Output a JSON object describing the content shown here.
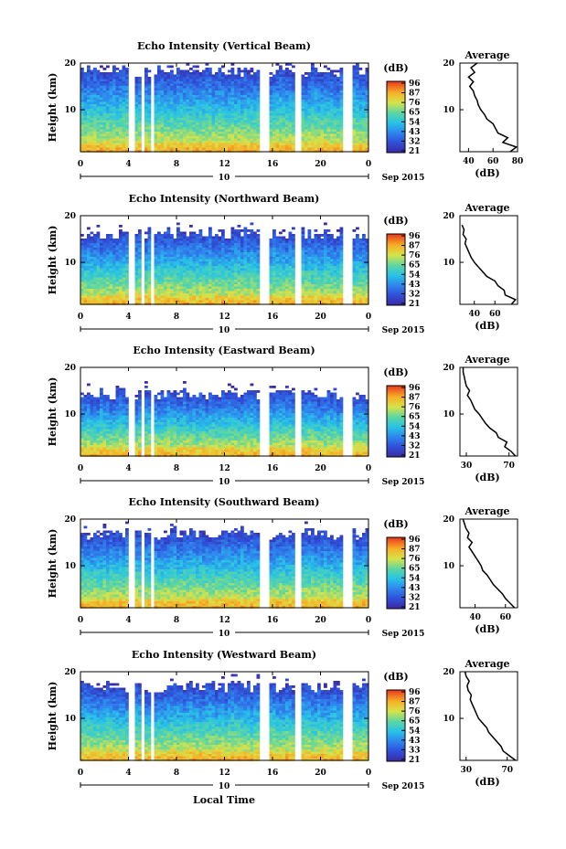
{
  "figure": {
    "xlabel": "Local Time",
    "date_label": "Sep 2015",
    "day_label": "10",
    "avg_title": "Average",
    "avg_xlabel": "(dB)",
    "cb_label": "(dB)",
    "ylabel": "Height (km)"
  },
  "chart_data": [
    {
      "type": "heatmap",
      "title": "Echo Intensity (Vertical Beam)",
      "ylabel": "Height (km)",
      "x_ticks": [
        "0",
        "4",
        "8",
        "12",
        "16",
        "20",
        "0"
      ],
      "y_ticks": [
        "10",
        "20"
      ],
      "xlim": [
        0,
        24
      ],
      "ylim": [
        1,
        20
      ],
      "colorbar_ticks": [
        "96",
        "87",
        "76",
        "65",
        "54",
        "43",
        "32",
        "21"
      ],
      "colorbar_range": [
        21,
        96
      ],
      "gaps": [
        [
          4.0,
          4.5
        ],
        [
          5.0,
          5.3
        ],
        [
          5.7,
          6.0
        ],
        [
          14.8,
          15.5
        ],
        [
          17.7,
          18.2
        ],
        [
          21.8,
          22.4
        ]
      ],
      "echo_top_km": 18.5,
      "average_profile": {
        "title": "Average",
        "xlabel": "(dB)",
        "x_ticks": [
          "40",
          "60",
          "80"
        ],
        "xlim": [
          33,
          80
        ],
        "y_ticks": [
          "10",
          "20"
        ],
        "ylim": [
          1,
          20
        ],
        "height_km": [
          1,
          2,
          3,
          4,
          5,
          6,
          7,
          8,
          9,
          10,
          11,
          12,
          13,
          14,
          15,
          16,
          17,
          18,
          19,
          20
        ],
        "values_db": [
          74,
          79,
          68,
          72,
          64,
          62,
          60,
          55,
          53,
          50,
          48,
          47,
          45,
          44,
          41,
          44,
          40,
          45,
          42,
          47
        ]
      }
    },
    {
      "type": "heatmap",
      "title": "Echo Intensity (Northward Beam)",
      "ylabel": "Height (km)",
      "x_ticks": [
        "0",
        "4",
        "8",
        "12",
        "16",
        "20",
        "0"
      ],
      "y_ticks": [
        "10",
        "20"
      ],
      "xlim": [
        0,
        24
      ],
      "ylim": [
        1,
        20
      ],
      "colorbar_ticks": [
        "96",
        "87",
        "76",
        "65",
        "54",
        "43",
        "32",
        "21"
      ],
      "colorbar_range": [
        21,
        96
      ],
      "gaps": [
        [
          4.0,
          4.5
        ],
        [
          5.0,
          5.3
        ],
        [
          5.7,
          6.0
        ],
        [
          14.8,
          15.5
        ],
        [
          17.7,
          18.2
        ],
        [
          21.8,
          22.4
        ]
      ],
      "echo_top_km": 16.5,
      "average_profile": {
        "title": "Average",
        "xlabel": "(dB)",
        "x_ticks": [
          "40",
          "60"
        ],
        "xlim": [
          26,
          82
        ],
        "y_ticks": [
          "10",
          "20"
        ],
        "ylim": [
          1,
          20
        ],
        "height_km": [
          1,
          2,
          3,
          4,
          5,
          6,
          7,
          8,
          9,
          10,
          11,
          12,
          13,
          14,
          15,
          16,
          17,
          18
        ],
        "values_db": [
          76,
          80,
          70,
          69,
          63,
          60,
          52,
          48,
          44,
          40,
          37,
          35,
          33,
          31,
          32,
          29,
          30,
          28
        ]
      }
    },
    {
      "type": "heatmap",
      "title": "Echo Intensity (Eastward Beam)",
      "ylabel": "Height (km)",
      "x_ticks": [
        "0",
        "4",
        "8",
        "12",
        "16",
        "20",
        "0"
      ],
      "y_ticks": [
        "10",
        "20"
      ],
      "xlim": [
        0,
        24
      ],
      "ylim": [
        1,
        20
      ],
      "colorbar_ticks": [
        "96",
        "87",
        "76",
        "65",
        "54",
        "43",
        "32",
        "21"
      ],
      "colorbar_range": [
        21,
        96
      ],
      "gaps": [
        [
          4.0,
          4.5
        ],
        [
          5.0,
          5.3
        ],
        [
          5.7,
          6.0
        ],
        [
          14.8,
          15.5
        ],
        [
          17.7,
          18.2
        ],
        [
          21.8,
          22.4
        ]
      ],
      "echo_top_km": 14.5,
      "average_profile": {
        "title": "Average",
        "xlabel": "(dB)",
        "x_ticks": [
          "30",
          "70"
        ],
        "xlim": [
          24,
          78
        ],
        "y_ticks": [
          "10",
          "20"
        ],
        "ylim": [
          1,
          20
        ],
        "height_km": [
          1,
          2,
          3,
          4,
          5,
          6,
          7,
          8,
          9,
          10,
          11,
          12,
          13,
          14,
          15,
          16,
          17,
          18,
          19,
          20
        ],
        "values_db": [
          76,
          72,
          66,
          68,
          60,
          58,
          52,
          48,
          45,
          42,
          38,
          36,
          34,
          31,
          33,
          30,
          29,
          28,
          27,
          27
        ]
      }
    },
    {
      "type": "heatmap",
      "title": "Echo Intensity (Southward Beam)",
      "ylabel": "Height (km)",
      "x_ticks": [
        "0",
        "4",
        "8",
        "12",
        "16",
        "20",
        "0"
      ],
      "y_ticks": [
        "10",
        "20"
      ],
      "xlim": [
        0,
        24
      ],
      "ylim": [
        1,
        20
      ],
      "colorbar_ticks": [
        "96",
        "87",
        "76",
        "65",
        "54",
        "43",
        "32",
        "21"
      ],
      "colorbar_range": [
        21,
        96
      ],
      "gaps": [
        [
          4.0,
          4.5
        ],
        [
          5.0,
          5.3
        ],
        [
          5.7,
          6.0
        ],
        [
          14.8,
          15.5
        ],
        [
          17.7,
          18.2
        ],
        [
          21.8,
          22.4
        ]
      ],
      "echo_top_km": 17.0,
      "average_profile": {
        "title": "Average",
        "xlabel": "(dB)",
        "x_ticks": [
          "40",
          "60"
        ],
        "xlim": [
          30,
          68
        ],
        "y_ticks": [
          "10",
          "20"
        ],
        "ylim": [
          1,
          20
        ],
        "height_km": [
          1,
          2,
          3,
          4,
          5,
          6,
          7,
          8,
          9,
          10,
          11,
          12,
          13,
          14,
          15,
          16,
          17,
          18,
          19,
          20
        ],
        "values_db": [
          66,
          63,
          60,
          58,
          55,
          52,
          50,
          48,
          45,
          44,
          42,
          40,
          38,
          36,
          38,
          35,
          36,
          34,
          33,
          32
        ]
      }
    },
    {
      "type": "heatmap",
      "title": "Echo Intensity (Westward Beam)",
      "ylabel": "Height (km)",
      "x_ticks": [
        "0",
        "4",
        "8",
        "12",
        "16",
        "20",
        "0"
      ],
      "y_ticks": [
        "10",
        "20"
      ],
      "xlim": [
        0,
        24
      ],
      "ylim": [
        1,
        20
      ],
      "colorbar_ticks": [
        "96",
        "87",
        "76",
        "65",
        "54",
        "43",
        "33",
        "21"
      ],
      "colorbar_range": [
        21,
        96
      ],
      "gaps": [
        [
          4.0,
          4.5
        ],
        [
          5.0,
          5.3
        ],
        [
          5.7,
          6.0
        ],
        [
          14.8,
          15.5
        ],
        [
          17.7,
          18.2
        ],
        [
          21.8,
          22.4
        ]
      ],
      "echo_top_km": 17.0,
      "average_profile": {
        "title": "Average",
        "xlabel": "(dB)",
        "x_ticks": [
          "30",
          "70"
        ],
        "xlim": [
          24,
          80
        ],
        "y_ticks": [
          "10",
          "20"
        ],
        "ylim": [
          1,
          20
        ],
        "height_km": [
          1,
          2,
          3,
          4,
          5,
          6,
          7,
          8,
          9,
          10,
          11,
          12,
          13,
          14,
          15,
          16,
          17,
          18,
          19,
          20
        ],
        "values_db": [
          78,
          72,
          66,
          64,
          60,
          56,
          52,
          50,
          46,
          42,
          40,
          38,
          36,
          34,
          35,
          32,
          31,
          33,
          30,
          29
        ]
      }
    }
  ]
}
